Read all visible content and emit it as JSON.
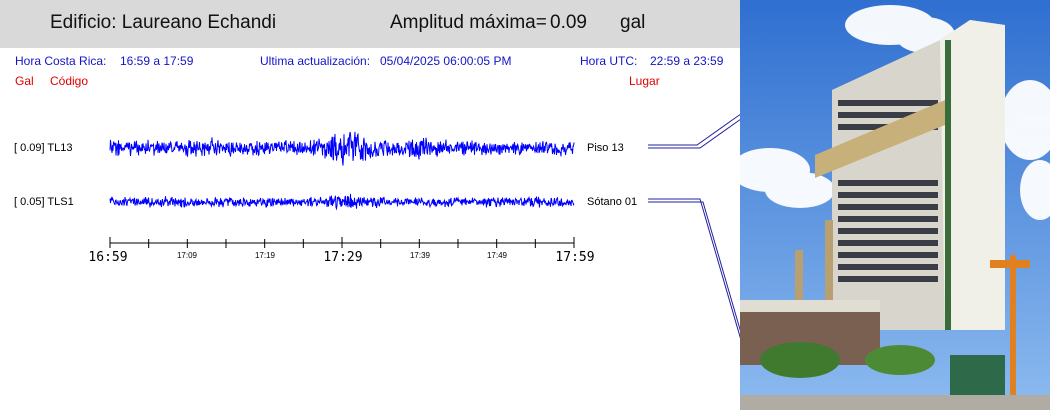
{
  "header": {
    "building": "Edificio: Laureano Echandi",
    "amp_label": "Amplitud máxima=",
    "amp_value": "0.09",
    "amp_unit": "gal"
  },
  "info": {
    "local_label": "Hora Costa Rica:",
    "local_range": "16:59 a 17:59",
    "update_label": "Ultima actualización:",
    "update_value": "05/04/2025 06:00:05 PM",
    "utc_label": "Hora UTC:",
    "utc_range": "22:59 a 23:59"
  },
  "columns": {
    "gal": "Gal",
    "code": "Código",
    "place": "Lugar"
  },
  "stations": [
    {
      "amp": "[   0.09] TL13",
      "place": "Piso 13"
    },
    {
      "amp": "[   0.05] TLS1",
      "place": "Sótano 01"
    }
  ],
  "time_axis": {
    "major": [
      "16:59",
      "17:29",
      "17:59"
    ],
    "minor": [
      "17:09",
      "17:19",
      "17:39",
      "17:49"
    ]
  },
  "colors": {
    "trace": "#0000ff",
    "header_bg": "#d9d9d9",
    "label_blue": "#1414c8",
    "label_red": "#e00000"
  }
}
